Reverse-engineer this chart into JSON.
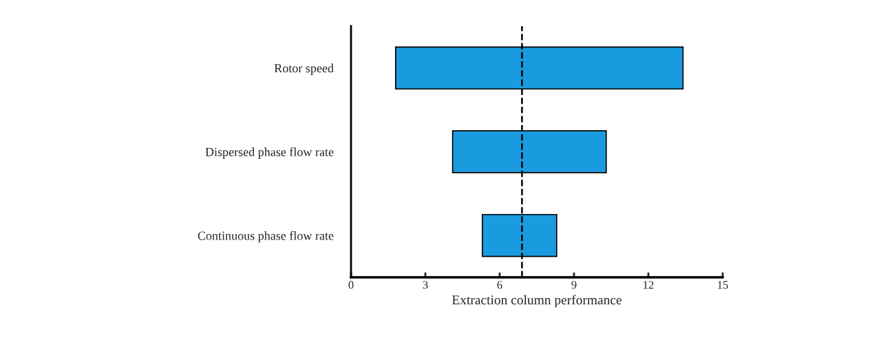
{
  "chart_data": {
    "type": "bar",
    "orientation": "horizontal",
    "xlabel": "Extraction column performance",
    "categories": [
      "Rotor speed",
      "Dispersed phase flow rate",
      "Continuous phase flow rate"
    ],
    "base": [
      1.8,
      4.1,
      5.3
    ],
    "values": [
      11.6,
      6.2,
      3.0
    ],
    "color": "#1a9be0",
    "xlim": [
      0,
      15
    ],
    "xticks": [
      0,
      3,
      6,
      9,
      12,
      15
    ],
    "ref_lines": [
      {
        "axis": "x",
        "value": 6.9,
        "color": "#000000",
        "line_style": "dashed"
      }
    ],
    "grid": false,
    "legend": false
  }
}
